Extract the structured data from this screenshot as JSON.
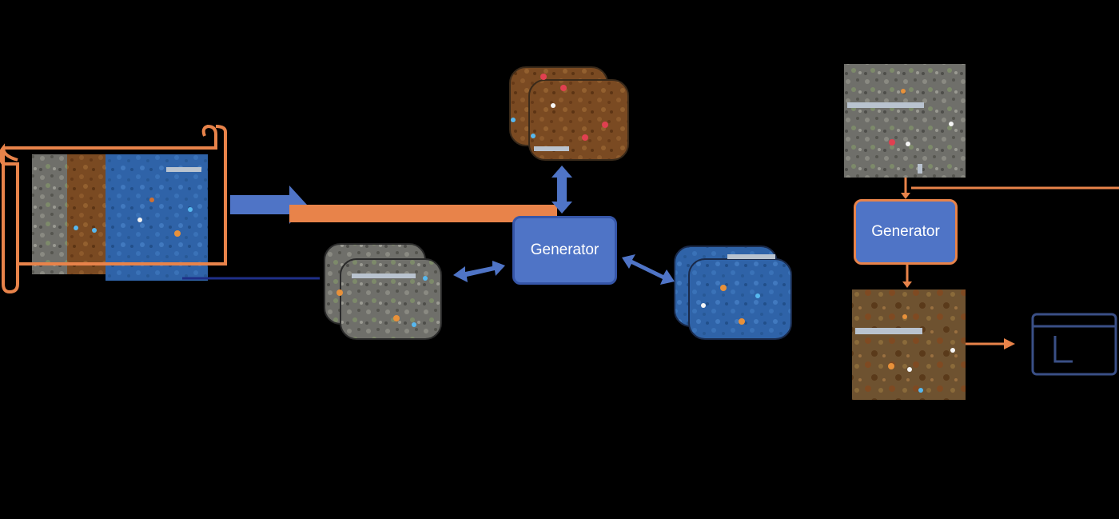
{
  "generator_center": {
    "label": "Generator"
  },
  "generator_right": {
    "label": "Generator"
  },
  "colors": {
    "background": "#000000",
    "generator_fill": "#4f74c6",
    "generator_border": "#3656a8",
    "orange_accent": "#e8834a",
    "arrow_blue": "#4f74c6",
    "line_navy": "#1f2f88",
    "level_gray": "#6f6f6a",
    "level_brown": "#7a4a22",
    "level_blue": "#2f63a8"
  },
  "icons": [
    "scroll-icon",
    "window-icon"
  ]
}
